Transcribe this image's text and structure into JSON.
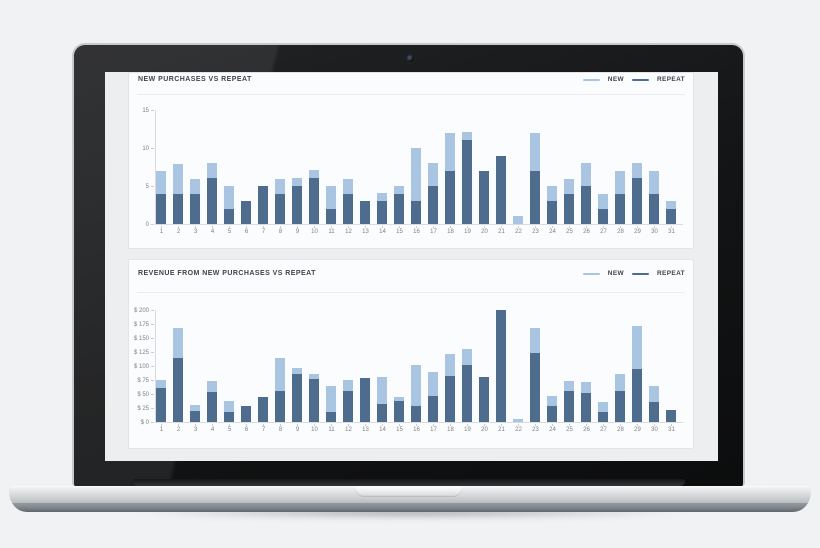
{
  "colors": {
    "new": "#a9c5e1",
    "repeat": "#4e6d8e",
    "page_background": "#f1f2f3",
    "screen_background": "#eceeef",
    "card_background": "#fbfcfd",
    "card_border": "#e2e4e7",
    "axis_line": "#d9dcdf",
    "tick_text": "#7b8188",
    "title_text": "#3d444c"
  },
  "laptop": {
    "webcam_icon": "webcam-dot"
  },
  "chart_data": [
    {
      "type": "bar",
      "stacked": true,
      "title": "NEW PURCHASES VS REPEAT",
      "categories": [
        "1",
        "2",
        "3",
        "4",
        "5",
        "6",
        "7",
        "8",
        "9",
        "10",
        "11",
        "12",
        "13",
        "14",
        "15",
        "16",
        "17",
        "18",
        "19",
        "20",
        "21",
        "22",
        "23",
        "24",
        "25",
        "26",
        "27",
        "28",
        "29",
        "30",
        "31"
      ],
      "series": [
        {
          "name": "NEW",
          "color": "#a9c5e1",
          "values": [
            3,
            4,
            2,
            2,
            3,
            0,
            0,
            2,
            1,
            1,
            3,
            2,
            0,
            1,
            1,
            7,
            3,
            5,
            1,
            0,
            0,
            1,
            5,
            2,
            2,
            3,
            2,
            3,
            2,
            3,
            1
          ]
        },
        {
          "name": "REPEAT",
          "color": "#4e6d8e",
          "values": [
            4,
            4,
            4,
            6,
            2,
            3,
            5,
            4,
            5,
            6,
            2,
            4,
            3,
            3,
            4,
            3,
            5,
            7,
            11,
            7,
            9,
            0,
            7,
            3,
            4,
            5,
            2,
            4,
            6,
            4,
            2
          ]
        }
      ],
      "xlabel": "",
      "ylabel": "",
      "ylim": [
        0,
        15
      ],
      "y_tick_labels": [
        "15",
        "10",
        "5",
        "0"
      ],
      "legend_position": "top-right",
      "grid": false,
      "stack_note": "REPEAT is the bottom (dark) segment, NEW is stacked on top (light)"
    },
    {
      "type": "bar",
      "stacked": true,
      "title": "REVENUE FROM NEW PURCHASES VS REPEAT",
      "categories": [
        "1",
        "2",
        "3",
        "4",
        "5",
        "6",
        "7",
        "8",
        "9",
        "10",
        "11",
        "12",
        "13",
        "14",
        "15",
        "16",
        "17",
        "18",
        "19",
        "20",
        "21",
        "22",
        "23",
        "24",
        "25",
        "26",
        "27",
        "28",
        "29",
        "30",
        "31"
      ],
      "series": [
        {
          "name": "NEW",
          "color": "#a9c5e1",
          "values": [
            15,
            53,
            10,
            19,
            19,
            0,
            0,
            59,
            10,
            9,
            47,
            19,
            0,
            48,
            8,
            74,
            42,
            40,
            29,
            0,
            0,
            5,
            45,
            18,
            17,
            20,
            18,
            31,
            77,
            28,
            0
          ]
        },
        {
          "name": "REPEAT",
          "color": "#4e6d8e",
          "values": [
            60,
            115,
            20,
            53,
            18,
            28,
            45,
            55,
            85,
            76,
            18,
            55,
            78,
            33,
            37,
            28,
            46,
            83,
            101,
            80,
            200,
            0,
            123,
            28,
            55,
            52,
            18,
            56,
            95,
            36,
            22
          ]
        }
      ],
      "xlabel": "",
      "ylabel": "",
      "ylim": [
        0,
        200
      ],
      "y_tick_labels": [
        "$ 200",
        "$ 175",
        "$ 150",
        "$ 125",
        "$ 100",
        "$ 75",
        "$ 50",
        "$ 25",
        "$ 0"
      ],
      "legend_position": "top-right",
      "grid": false,
      "stack_note": "REPEAT is the bottom (dark) segment, NEW is stacked on top (light)"
    }
  ]
}
